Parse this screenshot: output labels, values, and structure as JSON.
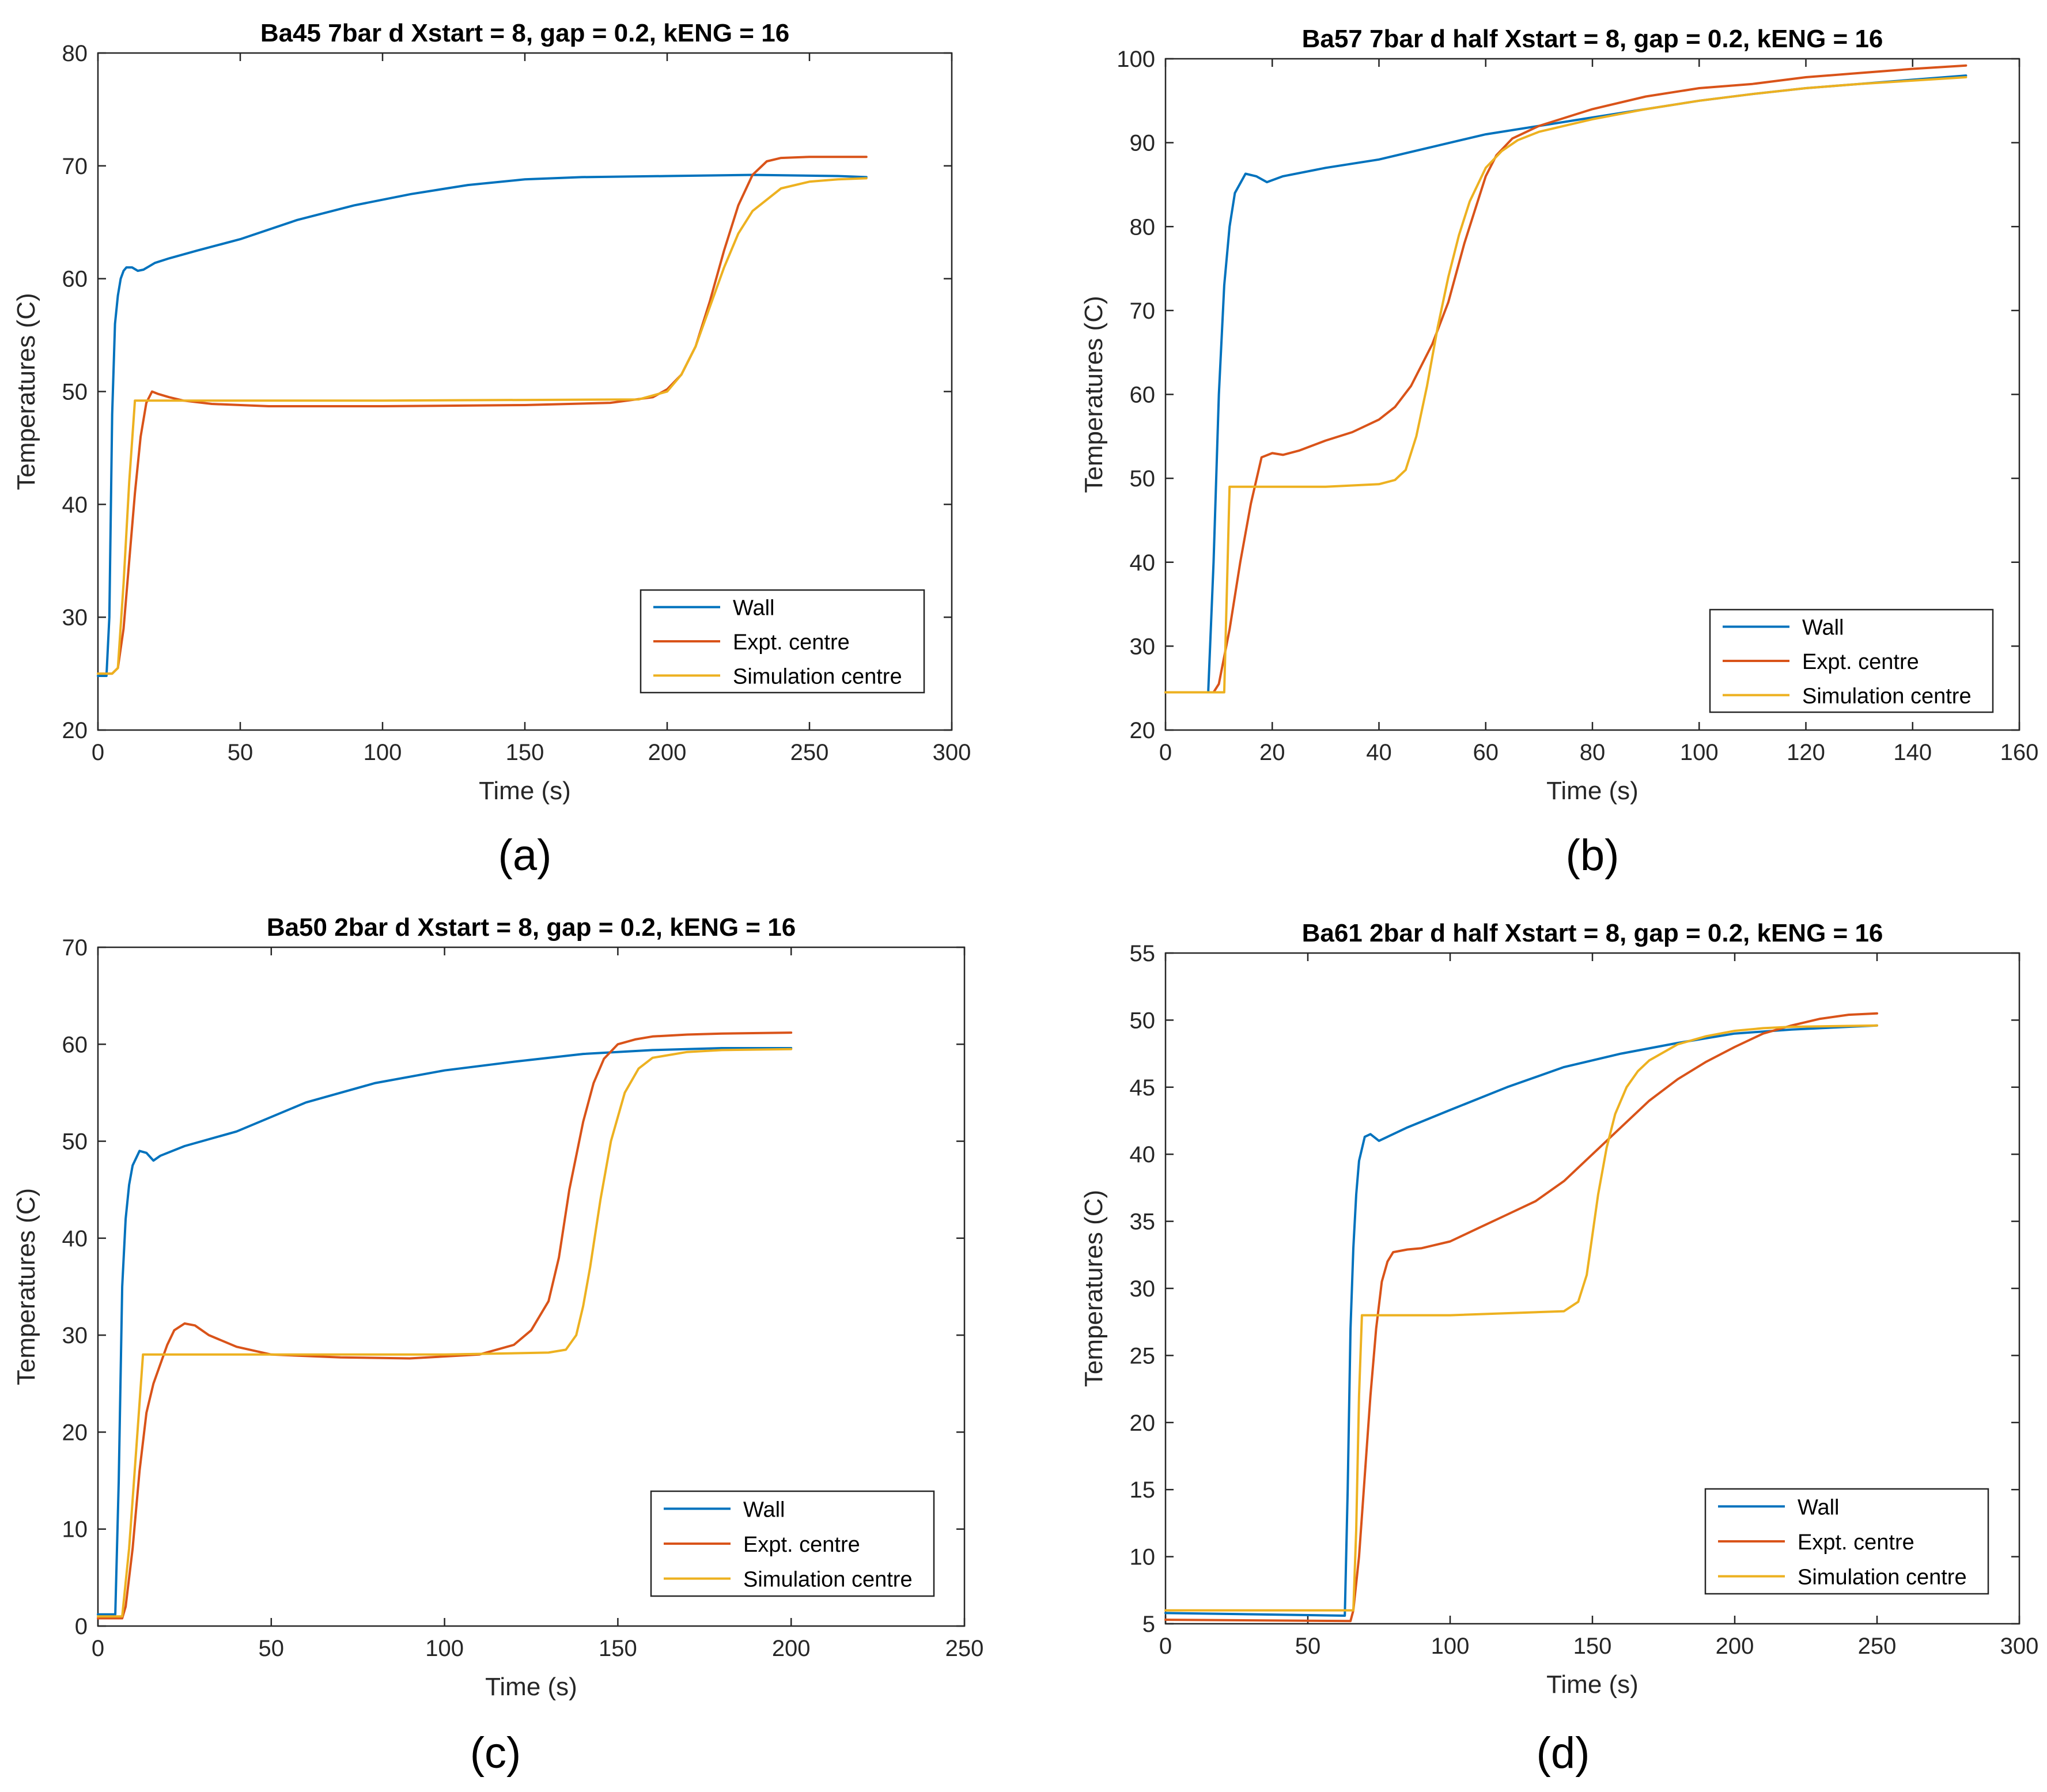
{
  "series_colors": {
    "wall": "#0072BD",
    "expt": "#D95319",
    "sim": "#EDB120"
  },
  "chart_data": [
    {
      "type": "line",
      "panel_label": "(a)",
      "title": "Ba45 7bar d Xstart = 8, gap = 0.2, kENG = 16",
      "xlabel": "Time (s)",
      "ylabel": "Temperatures (C)",
      "xlim": [
        0,
        300
      ],
      "ylim": [
        20,
        80
      ],
      "xticks": [
        "0",
        "50",
        "100",
        "150",
        "200",
        "250",
        "300"
      ],
      "yticks": [
        "20",
        "30",
        "40",
        "50",
        "60",
        "70",
        "80"
      ],
      "grid": false,
      "legend_position": "bottom-right",
      "series": [
        {
          "name": "Wall",
          "x": [
            0,
            3,
            4,
            5,
            6,
            7,
            8,
            9,
            10,
            12,
            14,
            16,
            20,
            25,
            35,
            50,
            70,
            90,
            110,
            130,
            150,
            170,
            200,
            230,
            260,
            270
          ],
          "y": [
            24.8,
            24.8,
            30,
            48,
            56,
            58.5,
            60,
            60.7,
            61,
            61,
            60.7,
            60.8,
            61.4,
            61.8,
            62.5,
            63.5,
            65.2,
            66.5,
            67.5,
            68.3,
            68.8,
            69,
            69.1,
            69.2,
            69.1,
            69
          ]
        },
        {
          "name": "Expt. centre",
          "x": [
            0,
            5,
            7,
            9,
            11,
            13,
            15,
            17,
            19,
            21,
            25,
            30,
            40,
            60,
            100,
            150,
            180,
            195,
            200,
            205,
            210,
            215,
            220,
            225,
            230,
            235,
            240,
            250,
            260,
            270
          ],
          "y": [
            25,
            25,
            25.5,
            29,
            35,
            41,
            46,
            49,
            50,
            49.8,
            49.5,
            49.2,
            48.9,
            48.7,
            48.7,
            48.8,
            49,
            49.5,
            50.2,
            51.5,
            54,
            58,
            62.5,
            66.5,
            69.2,
            70.4,
            70.7,
            70.8,
            70.8,
            70.8
          ]
        },
        {
          "name": "Simulation centre",
          "x": [
            0,
            5,
            7,
            9,
            11,
            13,
            100,
            190,
            200,
            205,
            210,
            215,
            220,
            225,
            230,
            240,
            250,
            260,
            270
          ],
          "y": [
            25,
            25,
            25.5,
            33,
            42,
            49.2,
            49.2,
            49.3,
            50,
            51.5,
            54,
            57.5,
            61,
            64,
            66,
            68,
            68.6,
            68.8,
            68.9
          ]
        }
      ]
    },
    {
      "type": "line",
      "panel_label": "(b)",
      "title": "Ba57 7bar d half Xstart = 8, gap = 0.2, kENG = 16",
      "xlabel": "Time (s)",
      "ylabel": "Temperatures (C)",
      "xlim": [
        0,
        160
      ],
      "ylim": [
        20,
        100
      ],
      "xticks": [
        "0",
        "20",
        "40",
        "60",
        "80",
        "100",
        "120",
        "140",
        "160"
      ],
      "yticks": [
        "20",
        "30",
        "40",
        "50",
        "60",
        "70",
        "80",
        "90",
        "100"
      ],
      "grid": false,
      "legend_position": "bottom-right",
      "series": [
        {
          "name": "Wall",
          "x": [
            0,
            8,
            9,
            10,
            11,
            12,
            13,
            15,
            17,
            19,
            22,
            30,
            40,
            50,
            60,
            70,
            80,
            90,
            100,
            110,
            120,
            130,
            140,
            150
          ],
          "y": [
            24.5,
            24.5,
            40,
            60,
            73,
            80,
            84,
            86.3,
            86,
            85.3,
            86,
            87,
            88,
            89.5,
            91,
            92,
            93,
            94,
            95,
            95.8,
            96.5,
            97,
            97.5,
            98
          ]
        },
        {
          "name": "Expt. centre",
          "x": [
            0,
            9,
            10,
            12,
            14,
            16,
            18,
            20,
            22,
            25,
            30,
            35,
            40,
            43,
            46,
            48,
            50,
            53,
            56,
            58,
            60,
            62,
            65,
            70,
            80,
            90,
            100,
            110,
            120,
            130,
            140,
            150
          ],
          "y": [
            24.5,
            24.5,
            25.5,
            32,
            40,
            47,
            52.5,
            53,
            52.8,
            53.3,
            54.5,
            55.5,
            57,
            58.5,
            61,
            63.5,
            66,
            71,
            78,
            82,
            86,
            88.5,
            90.5,
            92,
            94,
            95.5,
            96.5,
            97,
            97.8,
            98.3,
            98.8,
            99.2
          ]
        },
        {
          "name": "Simulation centre",
          "x": [
            0,
            11,
            12,
            20,
            30,
            40,
            43,
            45,
            47,
            49,
            51,
            53,
            55,
            57,
            60,
            63,
            66,
            70,
            80,
            90,
            100,
            110,
            120,
            130,
            140,
            150
          ],
          "y": [
            24.5,
            24.5,
            49,
            49,
            49,
            49.3,
            49.8,
            51,
            55,
            61,
            68,
            74,
            79,
            83,
            87,
            89,
            90.3,
            91.3,
            92.8,
            94,
            95,
            95.8,
            96.5,
            97,
            97.4,
            97.8
          ]
        }
      ]
    },
    {
      "type": "line",
      "panel_label": "(c)",
      "title": "Ba50 2bar d Xstart = 8, gap = 0.2, kENG = 16",
      "xlabel": "Time (s)",
      "ylabel": "Temperatures (C)",
      "xlim": [
        0,
        250
      ],
      "ylim": [
        0,
        70
      ],
      "xticks": [
        "0",
        "50",
        "100",
        "150",
        "200",
        "250"
      ],
      "yticks": [
        "0",
        "10",
        "20",
        "30",
        "40",
        "50",
        "60",
        "70"
      ],
      "grid": false,
      "legend_position": "bottom-right",
      "series": [
        {
          "name": "Wall",
          "x": [
            0,
            5,
            6,
            7,
            8,
            9,
            10,
            12,
            14,
            16,
            18,
            25,
            40,
            60,
            80,
            100,
            120,
            140,
            160,
            180,
            200
          ],
          "y": [
            1.2,
            1.2,
            15,
            35,
            42,
            45.5,
            47.5,
            49,
            48.8,
            48,
            48.5,
            49.5,
            51,
            54,
            56,
            57.3,
            58.2,
            59,
            59.4,
            59.6,
            59.6
          ]
        },
        {
          "name": "Expt. centre",
          "x": [
            0,
            7,
            8,
            10,
            12,
            14,
            16,
            18,
            20,
            22,
            25,
            28,
            32,
            40,
            50,
            70,
            90,
            110,
            120,
            125,
            130,
            133,
            136,
            140,
            143,
            146,
            150,
            155,
            160,
            170,
            180,
            200
          ],
          "y": [
            0.8,
            0.8,
            2,
            8,
            16,
            22,
            25,
            27,
            29,
            30.5,
            31.2,
            31,
            30,
            28.8,
            28,
            27.7,
            27.6,
            28,
            29,
            30.5,
            33.5,
            38,
            45,
            52,
            56,
            58.5,
            60,
            60.5,
            60.8,
            61,
            61.1,
            61.2
          ]
        },
        {
          "name": "Simulation centre",
          "x": [
            0,
            7,
            9,
            11,
            13,
            50,
            100,
            130,
            135,
            138,
            140,
            142,
            145,
            148,
            152,
            156,
            160,
            170,
            180,
            200
          ],
          "y": [
            1,
            1,
            8,
            18,
            28,
            28,
            28,
            28.2,
            28.5,
            30,
            33,
            37,
            44,
            50,
            55,
            57.5,
            58.6,
            59.2,
            59.4,
            59.5
          ]
        }
      ]
    },
    {
      "type": "line",
      "panel_label": "(d)",
      "title": "Ba61 2bar d half Xstart = 8, gap = 0.2, kENG = 16",
      "xlabel": "Time (s)",
      "ylabel": "Temperatures (C)",
      "xlim": [
        0,
        300
      ],
      "ylim": [
        5,
        55
      ],
      "xticks": [
        "0",
        "50",
        "100",
        "150",
        "200",
        "250",
        "300"
      ],
      "yticks": [
        "5",
        "10",
        "15",
        "20",
        "25",
        "30",
        "35",
        "40",
        "45",
        "50",
        "55"
      ],
      "grid": false,
      "legend_position": "bottom-right",
      "series": [
        {
          "name": "Wall",
          "x": [
            0,
            63,
            64,
            65,
            66,
            67,
            68,
            70,
            72,
            75,
            78,
            85,
            100,
            120,
            140,
            160,
            180,
            200,
            220,
            250
          ],
          "y": [
            5.8,
            5.6,
            15,
            27,
            33,
            37,
            39.5,
            41.3,
            41.5,
            41,
            41.3,
            42,
            43.3,
            45,
            46.5,
            47.5,
            48.3,
            49,
            49.3,
            49.6
          ]
        },
        {
          "name": "Expt. centre",
          "x": [
            0,
            65,
            66,
            68,
            70,
            72,
            74,
            76,
            78,
            80,
            85,
            90,
            100,
            110,
            120,
            130,
            140,
            150,
            160,
            170,
            180,
            190,
            200,
            210,
            220,
            230,
            240,
            250
          ],
          "y": [
            5.3,
            5.2,
            6,
            10,
            16,
            22,
            27,
            30.5,
            32,
            32.7,
            32.9,
            33,
            33.5,
            34.5,
            35.5,
            36.5,
            38,
            40,
            42,
            44,
            45.6,
            46.9,
            48,
            49,
            49.6,
            50.1,
            50.4,
            50.5
          ]
        },
        {
          "name": "Simulation centre",
          "x": [
            0,
            66,
            67,
            68,
            69,
            100,
            140,
            145,
            148,
            150,
            152,
            155,
            158,
            162,
            166,
            170,
            180,
            190,
            200,
            210,
            220,
            250
          ],
          "y": [
            6,
            6,
            12,
            22,
            28,
            28,
            28.3,
            29,
            31,
            34,
            37,
            40.5,
            43,
            45,
            46.2,
            47,
            48.2,
            48.8,
            49.2,
            49.4,
            49.5,
            49.6
          ]
        }
      ]
    }
  ]
}
